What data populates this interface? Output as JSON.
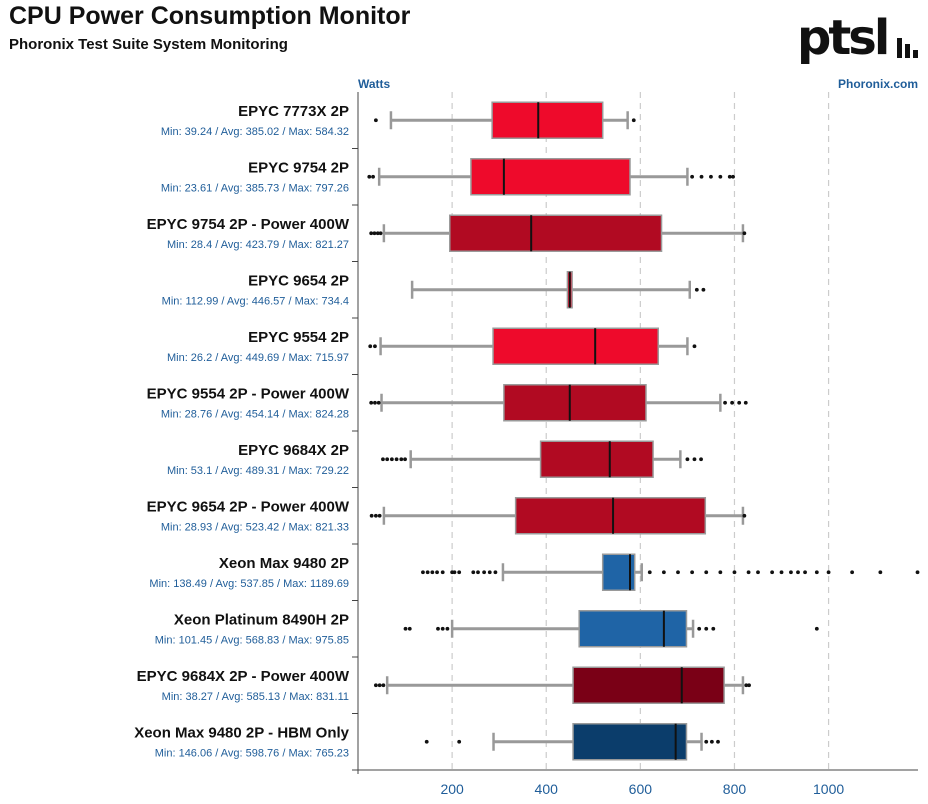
{
  "header": {
    "title": "CPU Power Consumption Monitor",
    "subtitle": "Phoronix Test Suite System Monitoring",
    "logo_text": "ptsl",
    "unit_label": "Watts",
    "source": "Phoronix.com"
  },
  "colors": {
    "red": "#ee0a2b",
    "dark_red": "#b10a22",
    "darker_red": "#7a0016",
    "blue": "#1f64a6",
    "dark_blue": "#0b3d6b",
    "label_blue": "#1f5d99",
    "whisker": "#999999",
    "grid": "#cccccc"
  },
  "chart_data": {
    "type": "boxplot",
    "title": "CPU Power Consumption Monitor",
    "xlabel": "Watts",
    "xlim": [
      0,
      1190
    ],
    "x_ticks": [
      200,
      400,
      600,
      800,
      1000
    ],
    "series": [
      {
        "name": "EPYC 7773X 2P",
        "stats": "Min: 39.24 / Avg: 385.02 / Max: 584.32",
        "whisker_low": 70,
        "q1": 285,
        "median": 383,
        "q3": 520,
        "whisker_high": 573,
        "outliers": [
          38,
          586
        ],
        "color": "red"
      },
      {
        "name": "EPYC 9754 2P",
        "stats": "Min: 23.61 / Avg: 385.73 / Max: 797.26",
        "whisker_low": 45,
        "q1": 240,
        "median": 310,
        "q3": 578,
        "whisker_high": 700,
        "outliers": [
          24,
          32,
          710,
          730,
          750,
          770,
          790,
          797
        ],
        "color": "red"
      },
      {
        "name": "EPYC 9754 2P - Power 400W",
        "stats": "Min: 28.4 / Avg: 423.79 / Max: 821.27",
        "whisker_low": 55,
        "q1": 195,
        "median": 368,
        "q3": 645,
        "whisker_high": 818,
        "outliers": [
          28,
          35,
          42,
          48,
          821
        ],
        "color": "dark_red"
      },
      {
        "name": "EPYC 9654 2P",
        "stats": "Min: 112.99 / Avg: 446.57 / Max: 734.4",
        "whisker_low": 115,
        "q1": 445,
        "median": 450,
        "q3": 455,
        "whisker_high": 705,
        "outliers": [
          720,
          734
        ],
        "color": "red"
      },
      {
        "name": "EPYC 9554 2P",
        "stats": "Min: 26.2 / Avg: 449.69 / Max: 715.97",
        "whisker_low": 48,
        "q1": 287,
        "median": 504,
        "q3": 638,
        "whisker_high": 700,
        "outliers": [
          26,
          36,
          715
        ],
        "color": "red"
      },
      {
        "name": "EPYC 9554 2P - Power 400W",
        "stats": "Min: 28.76 / Avg: 454.14 / Max: 824.28",
        "whisker_low": 50,
        "q1": 310,
        "median": 450,
        "q3": 612,
        "whisker_high": 770,
        "outliers": [
          28,
          36,
          44,
          780,
          795,
          810,
          824
        ],
        "color": "dark_red"
      },
      {
        "name": "EPYC 9684X 2P",
        "stats": "Min: 53.1 / Avg: 489.31 / Max: 729.22",
        "whisker_low": 112,
        "q1": 388,
        "median": 535,
        "q3": 627,
        "whisker_high": 685,
        "outliers": [
          53,
          62,
          72,
          82,
          92,
          100,
          700,
          715,
          729
        ],
        "color": "dark_red"
      },
      {
        "name": "EPYC 9654 2P - Power 400W",
        "stats": "Min: 28.93 / Avg: 523.42 / Max: 821.33",
        "whisker_low": 55,
        "q1": 335,
        "median": 542,
        "q3": 738,
        "whisker_high": 818,
        "outliers": [
          29,
          38,
          46,
          821
        ],
        "color": "dark_red"
      },
      {
        "name": "Xeon Max 9480 2P",
        "stats": "Min: 138.49 / Avg: 537.85 / Max: 1189.69",
        "whisker_low": 308,
        "q1": 520,
        "median": 578,
        "q3": 588,
        "whisker_high": 603,
        "outliers": [
          138,
          148,
          158,
          168,
          180,
          200,
          205,
          215,
          245,
          255,
          268,
          280,
          292,
          620,
          650,
          680,
          710,
          740,
          770,
          800,
          830,
          850,
          880,
          900,
          920,
          935,
          950,
          975,
          1000,
          1050,
          1110,
          1189
        ],
        "color": "blue"
      },
      {
        "name": "Xeon Platinum 8490H 2P",
        "stats": "Min: 101.45 / Avg: 568.83 / Max: 975.85",
        "whisker_low": 200,
        "q1": 470,
        "median": 650,
        "q3": 698,
        "whisker_high": 712,
        "outliers": [
          101,
          110,
          170,
          180,
          190,
          725,
          740,
          755,
          975
        ],
        "color": "blue"
      },
      {
        "name": "EPYC 9684X 2P - Power 400W",
        "stats": "Min: 38.27 / Avg: 585.13 / Max: 831.11",
        "whisker_low": 62,
        "q1": 457,
        "median": 688,
        "q3": 778,
        "whisker_high": 818,
        "outliers": [
          38,
          46,
          54,
          825,
          831
        ],
        "color": "darker_red"
      },
      {
        "name": "Xeon Max 9480 2P - HBM Only",
        "stats": "Min: 146.06 / Avg: 598.76 / Max: 765.23",
        "whisker_low": 288,
        "q1": 457,
        "median": 675,
        "q3": 698,
        "whisker_high": 730,
        "outliers": [
          146,
          215,
          740,
          752,
          765
        ],
        "color": "dark_blue"
      }
    ]
  }
}
